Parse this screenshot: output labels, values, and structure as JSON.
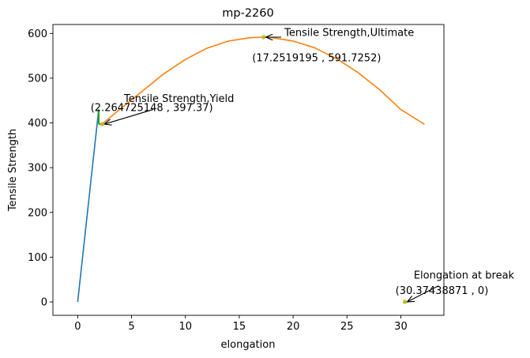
{
  "chart_data": {
    "type": "line",
    "title": "mp-2260",
    "xlabel": "elongation",
    "ylabel": "Tensile Strength",
    "xlim": [
      -2.3,
      34.0
    ],
    "ylim": [
      -30,
      620
    ],
    "xticks": [
      0,
      5,
      10,
      15,
      20,
      25,
      30
    ],
    "yticks": [
      0,
      100,
      200,
      300,
      400,
      500,
      600
    ],
    "grid": false,
    "series": [
      {
        "role": "elastic",
        "color": "#1f77b4",
        "x": [
          0,
          1.95
        ],
        "y": [
          0,
          430
        ]
      },
      {
        "role": "yield-segment",
        "color": "#2ca02c",
        "x": [
          1.95,
          1.95,
          2.0,
          2.05,
          2.1,
          2.15,
          2.2,
          2.264725148
        ],
        "y": [
          430,
          400,
          398,
          397.6,
          397.4,
          397.3,
          397.3,
          397.37
        ]
      },
      {
        "role": "plastic",
        "color": "#ff7f0e",
        "x": [
          2.264725148,
          4,
          6,
          8,
          10,
          12,
          14,
          16,
          17.2519195,
          18,
          20,
          22,
          24,
          26,
          28,
          30,
          32.2
        ],
        "y": [
          397.37,
          432,
          471,
          510,
          542,
          567,
          583,
          590.5,
          591.7252,
          590.8,
          583,
          568,
          544,
          513,
          475,
          430,
          397
        ]
      }
    ],
    "points": [
      {
        "x": 2.264725148,
        "y": 397.37,
        "color": "#bcbd22"
      },
      {
        "x": 17.2519195,
        "y": 591.7252,
        "color": "#bcbd22"
      },
      {
        "x": 30.37438871,
        "y": 0,
        "color": "#bcbd22"
      }
    ],
    "annotations": [
      {
        "label": "Tensile Strength,Yield",
        "coord_text": "(2.264725148 , 397.37)",
        "x": 2.264725148,
        "y": 397.37,
        "label_x": 4.3,
        "label_y": 447,
        "coord_x": 1.2,
        "coord_y": 427,
        "arrow_from_x": 7.0,
        "arrow_from_y": 430
      },
      {
        "label": "Tensile Strength,Ultimate",
        "coord_text": "(17.2519195 , 591.7252)",
        "x": 17.2519195,
        "y": 591.7252,
        "label_x": 19.2,
        "label_y": 594,
        "coord_x": 16.2,
        "coord_y": 538,
        "arrow_from_x": 18.9,
        "arrow_from_y": 591.7252
      },
      {
        "label": "Elongation at break",
        "coord_text": "(30.37438871 , 0)",
        "x": 30.37438871,
        "y": 0,
        "label_x": 31.2,
        "label_y": 52,
        "coord_x": 29.5,
        "coord_y": 18,
        "arrow_from_x": 33.5,
        "arrow_from_y": 36
      }
    ]
  }
}
